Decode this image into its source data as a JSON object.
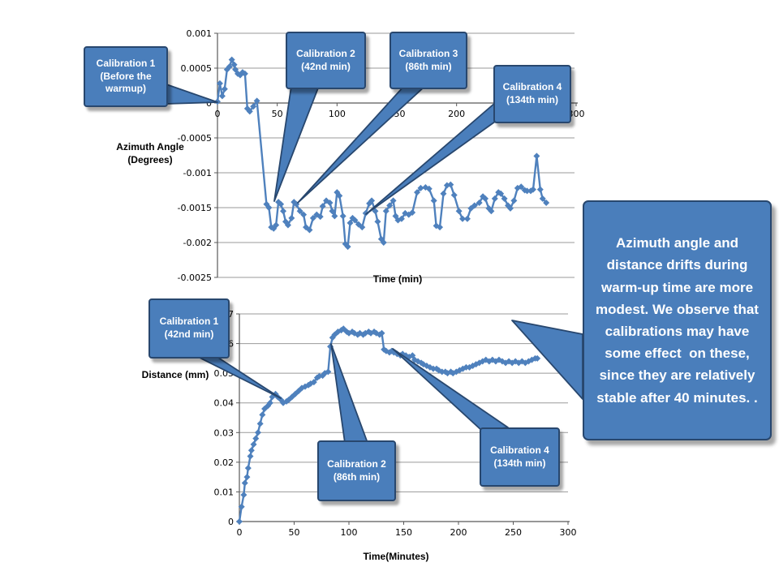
{
  "annotation_box": {
    "text": "Azimuth angle and distance drifts during warm-up time are more modest. We observe that calibrations may have some effect  on these, since they are relatively stable after 40 minutes. ."
  },
  "callouts": {
    "top_chart": [
      {
        "text": "Calibration 1\n(Before the\nwarmup)"
      },
      {
        "text": "Calibration 2\n(42nd min)"
      },
      {
        "text": "Calibration 3\n(86th min)"
      },
      {
        "text": "Calibration 4\n(134th min)"
      }
    ],
    "bottom_chart": [
      {
        "text": "Calibration 1\n(42nd min)"
      },
      {
        "text": "Calibration 2\n(86th min)"
      },
      {
        "text": "Calibration 4\n(134th min)"
      }
    ]
  },
  "colors": {
    "callout_fill": "#4a7ebb",
    "callout_border": "#28476e",
    "series_line": "#4f81bd",
    "gridline": "#9a9a9a",
    "axis": "#595959",
    "tick_text": "#000000",
    "callout_text": "#ffffff",
    "background": "#ffffff"
  },
  "chart_data": [
    {
      "type": "line",
      "name": "azimuth-drift",
      "xlabel": "Time (min)",
      "ylabel": "Azimuth Angle\n(Degrees)",
      "xlim": [
        0,
        300
      ],
      "ylim": [
        -0.0025,
        0.001
      ],
      "x_axis_at": 0,
      "grid": true,
      "xticks": [
        0,
        50,
        100,
        150,
        200,
        250,
        300
      ],
      "xtick_labels": [
        "0",
        "50",
        "100",
        "150",
        "200",
        "250",
        "300"
      ],
      "yticks": [
        0.001,
        0.0005,
        0,
        -0.0005,
        -0.001,
        -0.0015,
        -0.002,
        -0.0025
      ],
      "ytick_labels": [
        "0.001",
        "0.0005",
        "0",
        "-0.0005",
        "-0.001",
        "-0.0015",
        "-0.002",
        "-0.0025"
      ],
      "line_color": "#4f81bd",
      "marker": "diamond",
      "series": [
        {
          "name": "azimuth angle",
          "x": [
            0,
            2,
            4,
            6,
            8,
            10,
            12,
            14,
            15,
            17,
            19,
            21,
            23,
            25,
            27,
            30,
            33,
            41,
            43,
            45,
            47,
            49,
            51,
            53,
            55,
            57,
            59,
            62,
            64,
            66,
            69,
            72,
            74,
            77,
            80,
            83,
            86,
            88,
            91,
            94,
            96,
            98,
            100,
            102,
            105,
            107,
            109,
            111,
            113,
            115,
            118,
            121,
            124,
            127,
            129,
            132,
            134,
            137,
            139,
            141,
            144,
            147,
            149,
            151,
            154,
            157,
            160,
            163,
            167,
            170,
            174,
            177,
            181,
            183,
            186,
            189,
            192,
            195,
            198,
            202,
            205,
            209,
            212,
            215,
            219,
            222,
            224,
            227,
            229,
            232,
            235,
            237,
            240,
            243,
            245,
            248,
            251,
            254,
            257,
            259,
            262,
            264,
            267,
            270,
            272,
            275
          ],
          "y": [
            2e-05,
            0.00028,
            0.0001,
            0.0002,
            0.00048,
            0.00052,
            0.00062,
            0.00055,
            0.00048,
            0.00042,
            0.0004,
            0.00044,
            0.00042,
            -8e-05,
            -0.00012,
            -5e-05,
            3e-05,
            -0.00145,
            -0.0015,
            -0.00178,
            -0.0018,
            -0.00175,
            -0.00142,
            -0.00145,
            -0.00155,
            -0.0017,
            -0.00175,
            -0.00165,
            -0.00142,
            -0.00145,
            -0.00155,
            -0.0016,
            -0.00178,
            -0.00182,
            -0.00165,
            -0.0016,
            -0.00163,
            -0.00148,
            -0.0014,
            -0.00143,
            -0.00155,
            -0.00162,
            -0.00128,
            -0.00133,
            -0.00162,
            -0.00202,
            -0.00206,
            -0.00172,
            -0.00165,
            -0.00168,
            -0.00174,
            -0.00178,
            -0.00158,
            -0.00144,
            -0.0014,
            -0.00155,
            -0.0017,
            -0.00195,
            -0.002,
            -0.00155,
            -0.00147,
            -0.0014,
            -0.00162,
            -0.00168,
            -0.00166,
            -0.00158,
            -0.0016,
            -0.00157,
            -0.00128,
            -0.00122,
            -0.00121,
            -0.00123,
            -0.0014,
            -0.00176,
            -0.00178,
            -0.0013,
            -0.00118,
            -0.00117,
            -0.00132,
            -0.00155,
            -0.00166,
            -0.00166,
            -0.00151,
            -0.00147,
            -0.00143,
            -0.00134,
            -0.00137,
            -0.00151,
            -0.00155,
            -0.00137,
            -0.00128,
            -0.0013,
            -0.00137,
            -0.00147,
            -0.00151,
            -0.0014,
            -0.00122,
            -0.0012,
            -0.00125,
            -0.00126,
            -0.00126,
            -0.00124,
            -0.00076,
            -0.00124,
            -0.00137,
            -0.00143
          ]
        }
      ]
    },
    {
      "type": "line",
      "name": "distance-drift",
      "xlabel": "Time(Minutes)",
      "ylabel": "Distance (mm)",
      "xlim": [
        0,
        300
      ],
      "ylim": [
        0,
        0.07
      ],
      "x_axis_at": 0,
      "grid": true,
      "xticks": [
        0,
        50,
        100,
        150,
        200,
        250,
        300
      ],
      "xtick_labels": [
        "0",
        "50",
        "100",
        "150",
        "200",
        "250",
        "300"
      ],
      "yticks": [
        0,
        0.01,
        0.02,
        0.03,
        0.04,
        0.05,
        0.06,
        0.07
      ],
      "ytick_labels": [
        "0",
        "0.01",
        "0.02",
        "0.03",
        "0.04",
        "0.05",
        "0.06",
        "0.07"
      ],
      "line_color": "#4f81bd",
      "marker": "diamond",
      "series": [
        {
          "name": "distance",
          "x": [
            0,
            2,
            4,
            5,
            7,
            8,
            10,
            11,
            13,
            15,
            17,
            19,
            21,
            23,
            26,
            28,
            30,
            33,
            35,
            38,
            40,
            43,
            45,
            48,
            51,
            54,
            57,
            60,
            63,
            65,
            68,
            71,
            73,
            76,
            78,
            81,
            83,
            85,
            87,
            90,
            93,
            95,
            98,
            100,
            103,
            105,
            108,
            110,
            113,
            115,
            118,
            120,
            123,
            125,
            128,
            130,
            132,
            134,
            137,
            139,
            141,
            144,
            147,
            149,
            152,
            155,
            158,
            160,
            163,
            166,
            168,
            171,
            174,
            177,
            180,
            182,
            185,
            188,
            190,
            193,
            195,
            198,
            201,
            204,
            207,
            210,
            213,
            216,
            219,
            222,
            225,
            228,
            231,
            234,
            237,
            240,
            243,
            246,
            249,
            252,
            255,
            258,
            261,
            264,
            267,
            270,
            272
          ],
          "y": [
            0,
            0.005,
            0.009,
            0.013,
            0.015,
            0.018,
            0.022,
            0.024,
            0.026,
            0.028,
            0.03,
            0.033,
            0.036,
            0.038,
            0.039,
            0.04,
            0.042,
            0.043,
            0.042,
            0.041,
            0.04,
            0.0405,
            0.041,
            0.042,
            0.043,
            0.044,
            0.045,
            0.0455,
            0.046,
            0.0465,
            0.047,
            0.0485,
            0.049,
            0.0492,
            0.05,
            0.0505,
            0.059,
            0.062,
            0.063,
            0.064,
            0.0645,
            0.065,
            0.064,
            0.0635,
            0.064,
            0.0635,
            0.063,
            0.0635,
            0.063,
            0.0635,
            0.064,
            0.0635,
            0.064,
            0.0635,
            0.063,
            0.0635,
            0.058,
            0.0575,
            0.057,
            0.0575,
            0.057,
            0.0565,
            0.056,
            0.0565,
            0.056,
            0.0555,
            0.056,
            0.0545,
            0.054,
            0.0535,
            0.053,
            0.0525,
            0.052,
            0.0515,
            0.0515,
            0.051,
            0.0505,
            0.0505,
            0.05,
            0.0505,
            0.05,
            0.0505,
            0.051,
            0.0515,
            0.052,
            0.052,
            0.0525,
            0.053,
            0.0535,
            0.054,
            0.0545,
            0.054,
            0.0545,
            0.054,
            0.0545,
            0.054,
            0.0535,
            0.054,
            0.0535,
            0.054,
            0.0535,
            0.054,
            0.0535,
            0.054,
            0.0545,
            0.055,
            0.055
          ]
        }
      ]
    }
  ]
}
